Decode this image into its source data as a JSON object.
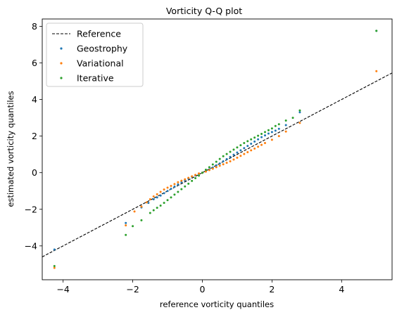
{
  "chart_data": {
    "type": "scatter",
    "title": "Vorticity Q-Q plot",
    "xlabel": "reference vorticity quantiles",
    "ylabel": "estimated vorticity quantiles",
    "xlim": [
      -4.6,
      5.45
    ],
    "ylim": [
      -5.85,
      8.4
    ],
    "xticks": [
      -4,
      -2,
      0,
      2,
      4
    ],
    "yticks": [
      -4,
      -2,
      0,
      2,
      4,
      6,
      8
    ],
    "grid": false,
    "legend_position": "top-left",
    "reference_line": {
      "name": "Reference",
      "color": "#000000",
      "style": "dashed",
      "x": [
        -4.6,
        5.45
      ],
      "y": [
        -4.6,
        5.45
      ]
    },
    "series": [
      {
        "name": "Geostrophy",
        "color": "#1f77b4",
        "x": [
          -4.25,
          -2.2,
          -1.75,
          -1.55,
          -1.4,
          -1.3,
          -1.2,
          -1.1,
          -1.0,
          -0.9,
          -0.8,
          -0.7,
          -0.6,
          -0.5,
          -0.4,
          -0.3,
          -0.2,
          -0.1,
          0.0,
          0.1,
          0.2,
          0.3,
          0.4,
          0.5,
          0.6,
          0.7,
          0.8,
          0.9,
          1.0,
          1.1,
          1.2,
          1.3,
          1.4,
          1.5,
          1.6,
          1.7,
          1.8,
          1.9,
          2.0,
          2.1,
          2.2,
          2.4,
          2.8,
          5.0
        ],
        "y": [
          -4.2,
          -2.75,
          -1.9,
          -1.65,
          -1.45,
          -1.35,
          -1.25,
          -1.12,
          -1.0,
          -0.88,
          -0.76,
          -0.64,
          -0.52,
          -0.42,
          -0.32,
          -0.22,
          -0.14,
          -0.06,
          0.0,
          0.08,
          0.18,
          0.28,
          0.4,
          0.5,
          0.62,
          0.74,
          0.86,
          0.98,
          1.1,
          1.22,
          1.34,
          1.46,
          1.58,
          1.7,
          1.82,
          1.94,
          2.04,
          2.14,
          2.22,
          2.3,
          2.4,
          2.6,
          3.3,
          7.75
        ]
      },
      {
        "name": "Variational",
        "color": "#ff7f0e",
        "x": [
          -4.25,
          -2.2,
          -1.95,
          -1.75,
          -1.6,
          -1.5,
          -1.4,
          -1.3,
          -1.2,
          -1.1,
          -1.0,
          -0.9,
          -0.8,
          -0.7,
          -0.6,
          -0.5,
          -0.4,
          -0.3,
          -0.2,
          -0.1,
          0.0,
          0.1,
          0.2,
          0.3,
          0.4,
          0.5,
          0.6,
          0.7,
          0.8,
          0.9,
          1.0,
          1.1,
          1.2,
          1.3,
          1.4,
          1.5,
          1.6,
          1.7,
          1.8,
          2.0,
          2.2,
          2.4,
          2.8,
          5.0
        ],
        "y": [
          -5.2,
          -2.88,
          -2.12,
          -1.85,
          -1.62,
          -1.45,
          -1.3,
          -1.18,
          -1.05,
          -0.92,
          -0.82,
          -0.72,
          -0.62,
          -0.52,
          -0.44,
          -0.36,
          -0.28,
          -0.2,
          -0.12,
          -0.04,
          0.0,
          0.06,
          0.14,
          0.22,
          0.3,
          0.38,
          0.46,
          0.54,
          0.62,
          0.72,
          0.82,
          0.92,
          1.02,
          1.12,
          1.22,
          1.32,
          1.42,
          1.52,
          1.62,
          1.8,
          2.0,
          2.25,
          2.72,
          5.55
        ]
      },
      {
        "name": "Iterative",
        "color": "#2ca02c",
        "x": [
          -4.25,
          -2.2,
          -2.0,
          -1.75,
          -1.5,
          -1.4,
          -1.3,
          -1.2,
          -1.1,
          -1.0,
          -0.9,
          -0.8,
          -0.7,
          -0.6,
          -0.5,
          -0.4,
          -0.3,
          -0.2,
          -0.1,
          0.0,
          0.1,
          0.2,
          0.3,
          0.4,
          0.5,
          0.6,
          0.7,
          0.8,
          0.9,
          1.0,
          1.1,
          1.2,
          1.3,
          1.4,
          1.5,
          1.6,
          1.7,
          1.8,
          1.9,
          2.0,
          2.1,
          2.2,
          2.4,
          2.6,
          2.8,
          5.0
        ],
        "y": [
          -5.1,
          -3.4,
          -2.92,
          -2.6,
          -2.2,
          -2.05,
          -1.92,
          -1.8,
          -1.65,
          -1.5,
          -1.35,
          -1.2,
          -1.05,
          -0.9,
          -0.75,
          -0.6,
          -0.45,
          -0.3,
          -0.16,
          0.0,
          0.16,
          0.3,
          0.45,
          0.6,
          0.75,
          0.9,
          1.02,
          1.14,
          1.26,
          1.38,
          1.5,
          1.62,
          1.72,
          1.82,
          1.92,
          2.02,
          2.12,
          2.22,
          2.32,
          2.42,
          2.55,
          2.65,
          2.85,
          3.0,
          3.4,
          7.75
        ]
      }
    ]
  }
}
